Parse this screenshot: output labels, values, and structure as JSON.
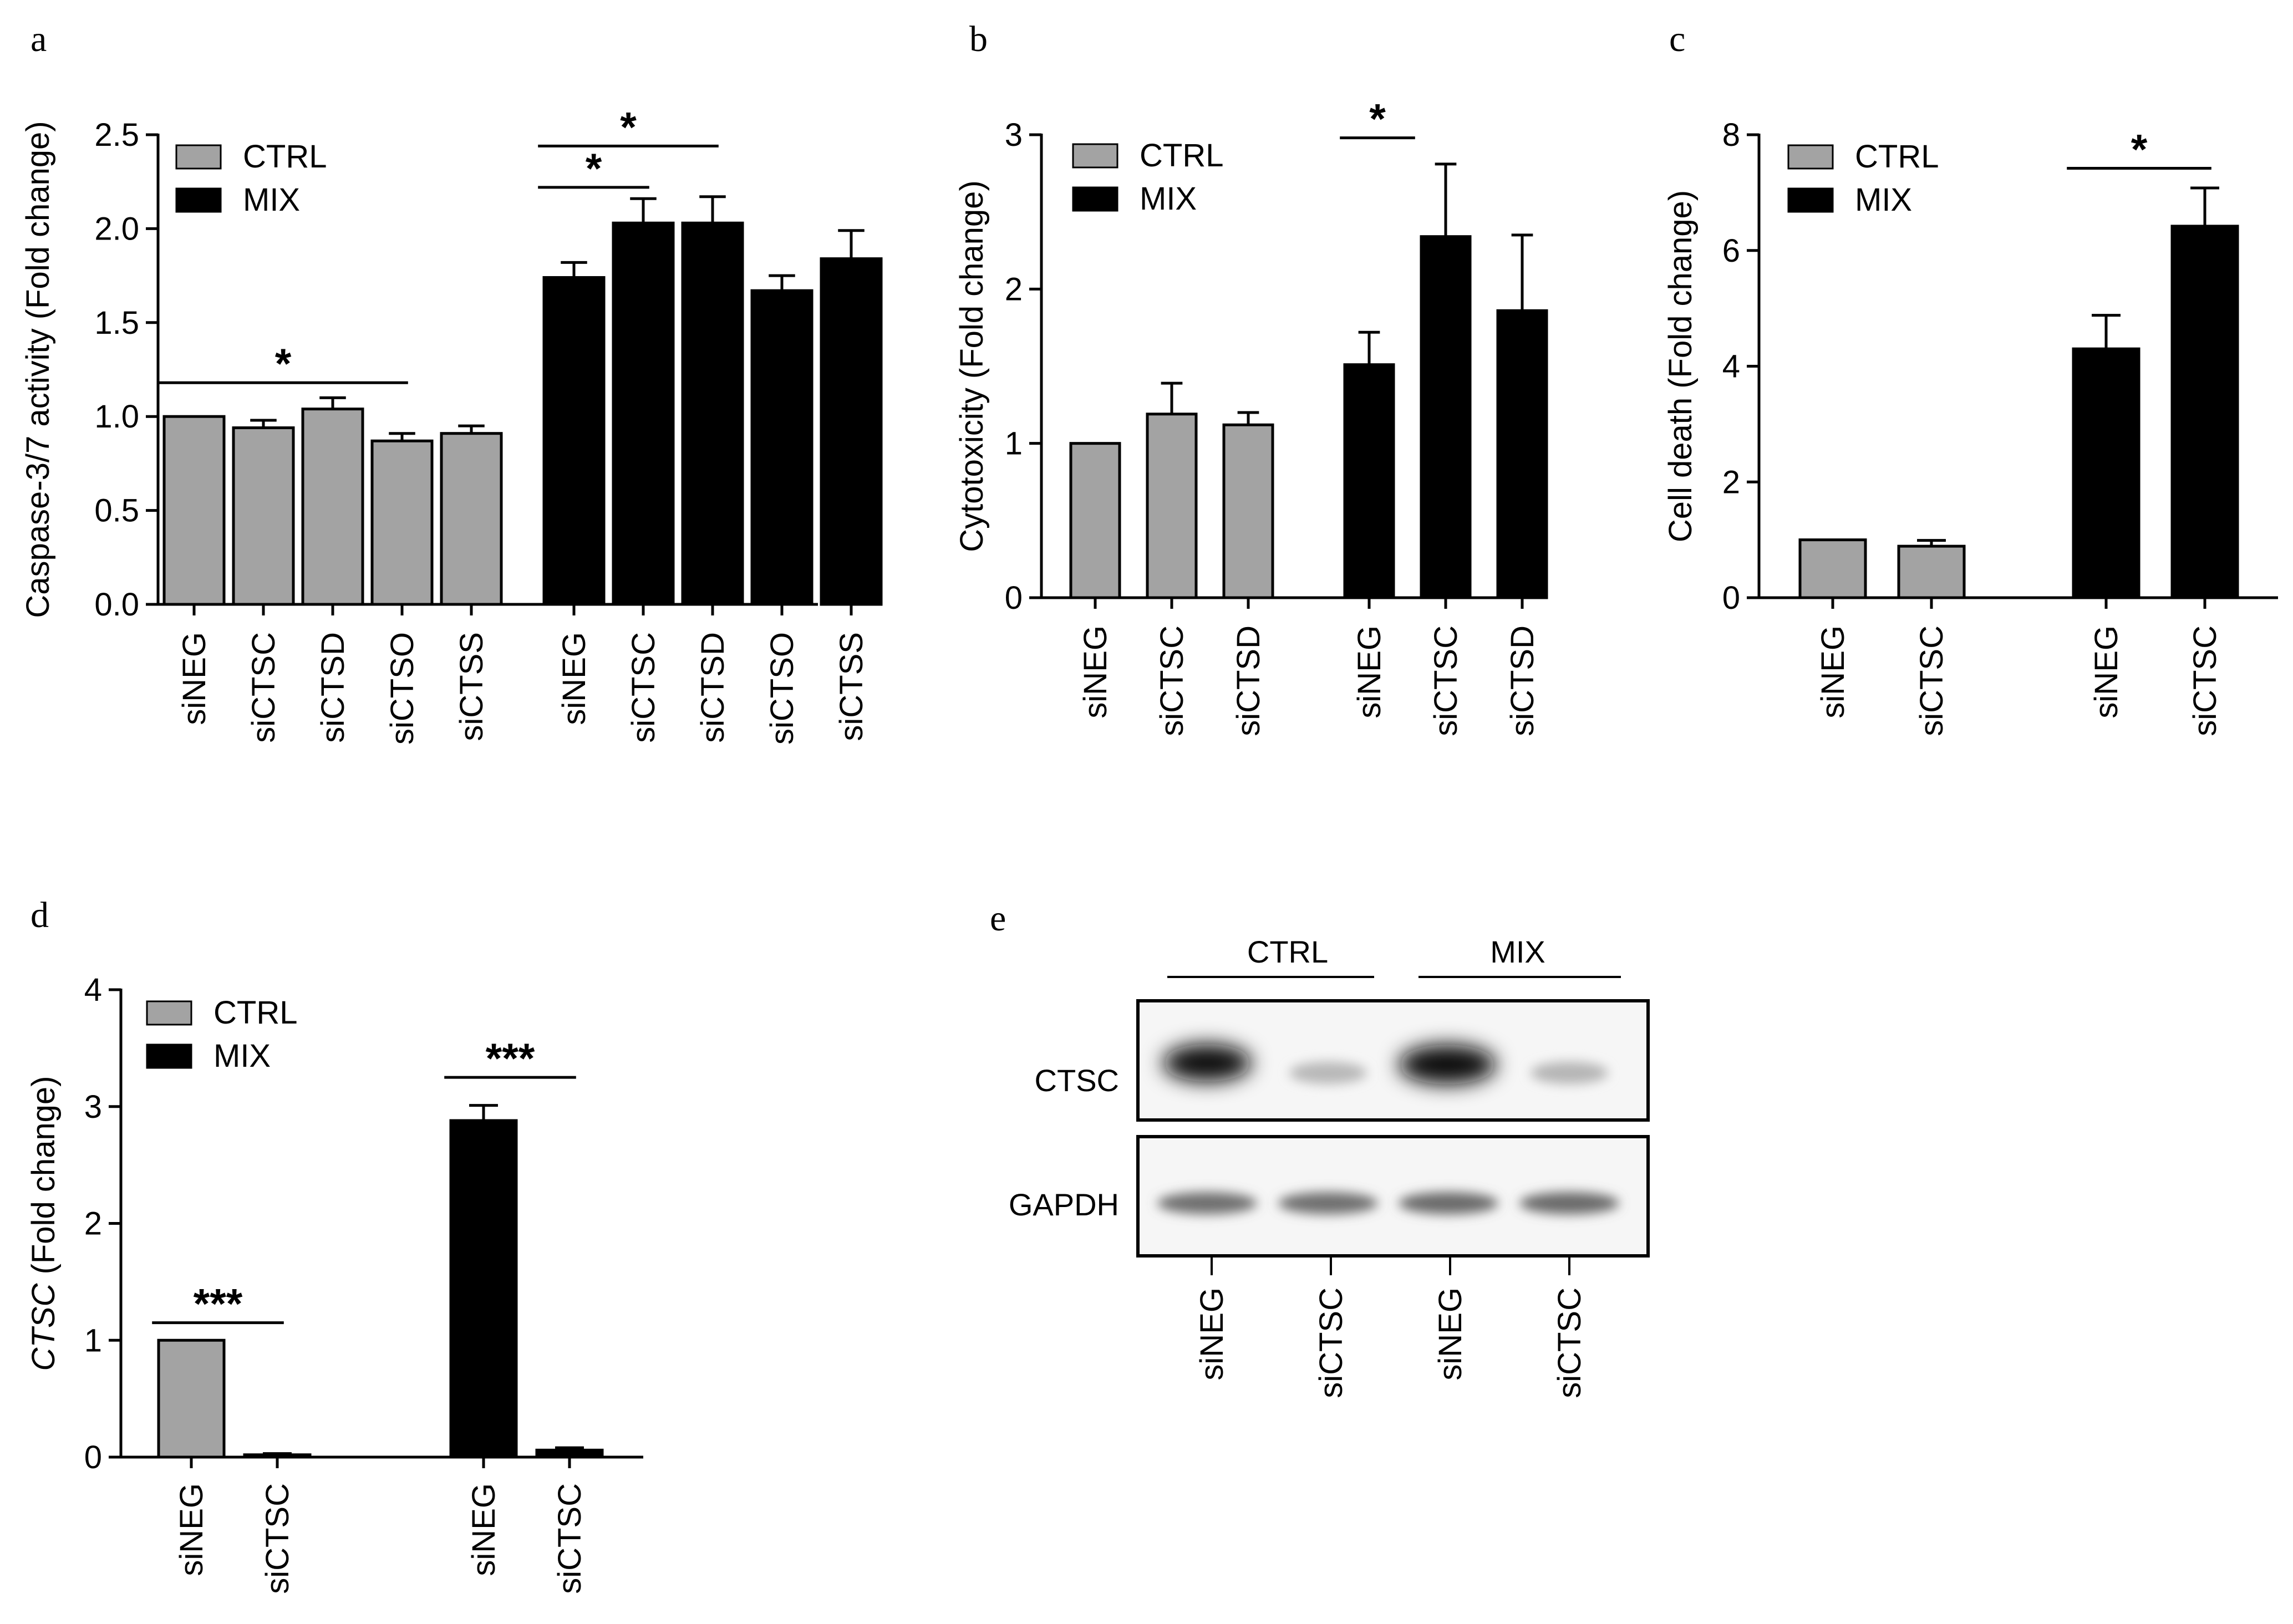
{
  "chart_data": [
    {
      "panel": "a",
      "type": "bar",
      "ylabel": "Caspase-3/7 activity (Fold change)",
      "ylim": [
        0,
        2.5
      ],
      "yticks": [
        "0.0",
        "0.5",
        "1.0",
        "1.5",
        "2.0",
        "2.5"
      ],
      "legend": [
        "CTRL",
        "MIX"
      ],
      "groups": [
        {
          "name": "CTRL",
          "categories": [
            "siNEG",
            "siCTSC",
            "siCTSD",
            "siCTSO",
            "siCTSS"
          ],
          "values": [
            1.0,
            0.94,
            1.04,
            0.87,
            0.91
          ],
          "errors": [
            0.0,
            0.04,
            0.06,
            0.04,
            0.04
          ]
        },
        {
          "name": "MIX",
          "categories": [
            "siNEG",
            "siCTSC",
            "siCTSD",
            "siCTSO",
            "siCTSS"
          ],
          "values": [
            1.74,
            2.03,
            2.03,
            1.67,
            1.84
          ],
          "errors": [
            0.08,
            0.13,
            0.14,
            0.08,
            0.15
          ]
        }
      ],
      "significance": [
        {
          "group": 0,
          "from": 0,
          "to": 3,
          "label": "*",
          "y": 1.18
        },
        {
          "group": 1,
          "from": 0,
          "to": 1,
          "label": "*",
          "y": 2.22
        },
        {
          "group": 1,
          "from": 0,
          "to": 2,
          "label": "*",
          "y": 2.44
        }
      ]
    },
    {
      "panel": "b",
      "type": "bar",
      "ylabel": "Cytotoxicity (Fold change)",
      "ylim": [
        0,
        3
      ],
      "yticks": [
        "0",
        "1",
        "2",
        "3"
      ],
      "legend": [
        "CTRL",
        "MIX"
      ],
      "groups": [
        {
          "name": "CTRL",
          "categories": [
            "siNEG",
            "siCTSC",
            "siCTSD"
          ],
          "values": [
            1.0,
            1.19,
            1.12
          ],
          "errors": [
            0.0,
            0.2,
            0.08
          ]
        },
        {
          "name": "MIX",
          "categories": [
            "siNEG",
            "siCTSC",
            "siCTSD"
          ],
          "values": [
            1.51,
            2.34,
            1.86
          ],
          "errors": [
            0.21,
            0.47,
            0.49
          ]
        }
      ],
      "significance": [
        {
          "group": 1,
          "from": 0,
          "to": 0.6,
          "label": "*",
          "y": 2.98
        }
      ]
    },
    {
      "panel": "c",
      "type": "bar",
      "ylabel": "Cell death (Fold change)",
      "ylim": [
        0,
        8
      ],
      "yticks": [
        "0",
        "2",
        "4",
        "6",
        "8"
      ],
      "legend": [
        "CTRL",
        "MIX"
      ],
      "groups": [
        {
          "name": "CTRL",
          "categories": [
            "siNEG",
            "siCTSC"
          ],
          "values": [
            1.0,
            0.89
          ],
          "errors": [
            0.0,
            0.1
          ]
        },
        {
          "name": "MIX",
          "categories": [
            "siNEG",
            "siCTSC"
          ],
          "values": [
            4.3,
            6.42
          ],
          "errors": [
            0.58,
            0.66
          ]
        }
      ],
      "significance": [
        {
          "group": 1,
          "from": 0,
          "to": 1,
          "label": "*",
          "y": 7.42
        }
      ]
    },
    {
      "panel": "d",
      "type": "bar",
      "ylabel_italic": "CTSC",
      "ylabel": " (Fold change)",
      "ylim": [
        0,
        4
      ],
      "yticks": [
        "0",
        "1",
        "2",
        "3",
        "4"
      ],
      "legend": [
        "CTRL",
        "MIX"
      ],
      "groups": [
        {
          "name": "CTRL",
          "categories": [
            "siNEG",
            "siCTSC"
          ],
          "values": [
            1.0,
            0.02
          ],
          "errors": [
            0.0,
            0.01
          ]
        },
        {
          "name": "MIX",
          "categories": [
            "siNEG",
            "siCTSC"
          ],
          "values": [
            2.88,
            0.06
          ],
          "errors": [
            0.13,
            0.02
          ]
        }
      ],
      "significance": [
        {
          "group": 0,
          "from": 0,
          "to": 1,
          "label": "***",
          "y": 1.15
        },
        {
          "group": 1,
          "from": 0,
          "to": 1,
          "label": "***",
          "y": 3.25
        }
      ]
    }
  ],
  "blot": {
    "panel": "e",
    "groups": [
      "CTRL",
      "MIX"
    ],
    "rows": [
      "CTSC",
      "GAPDH"
    ],
    "lanes": [
      "siNEG",
      "siCTSC",
      "siNEG",
      "siCTSC"
    ]
  },
  "colors": {
    "ctrl": "#a3a3a3",
    "mix": "#000000",
    "axis": "#000000"
  }
}
